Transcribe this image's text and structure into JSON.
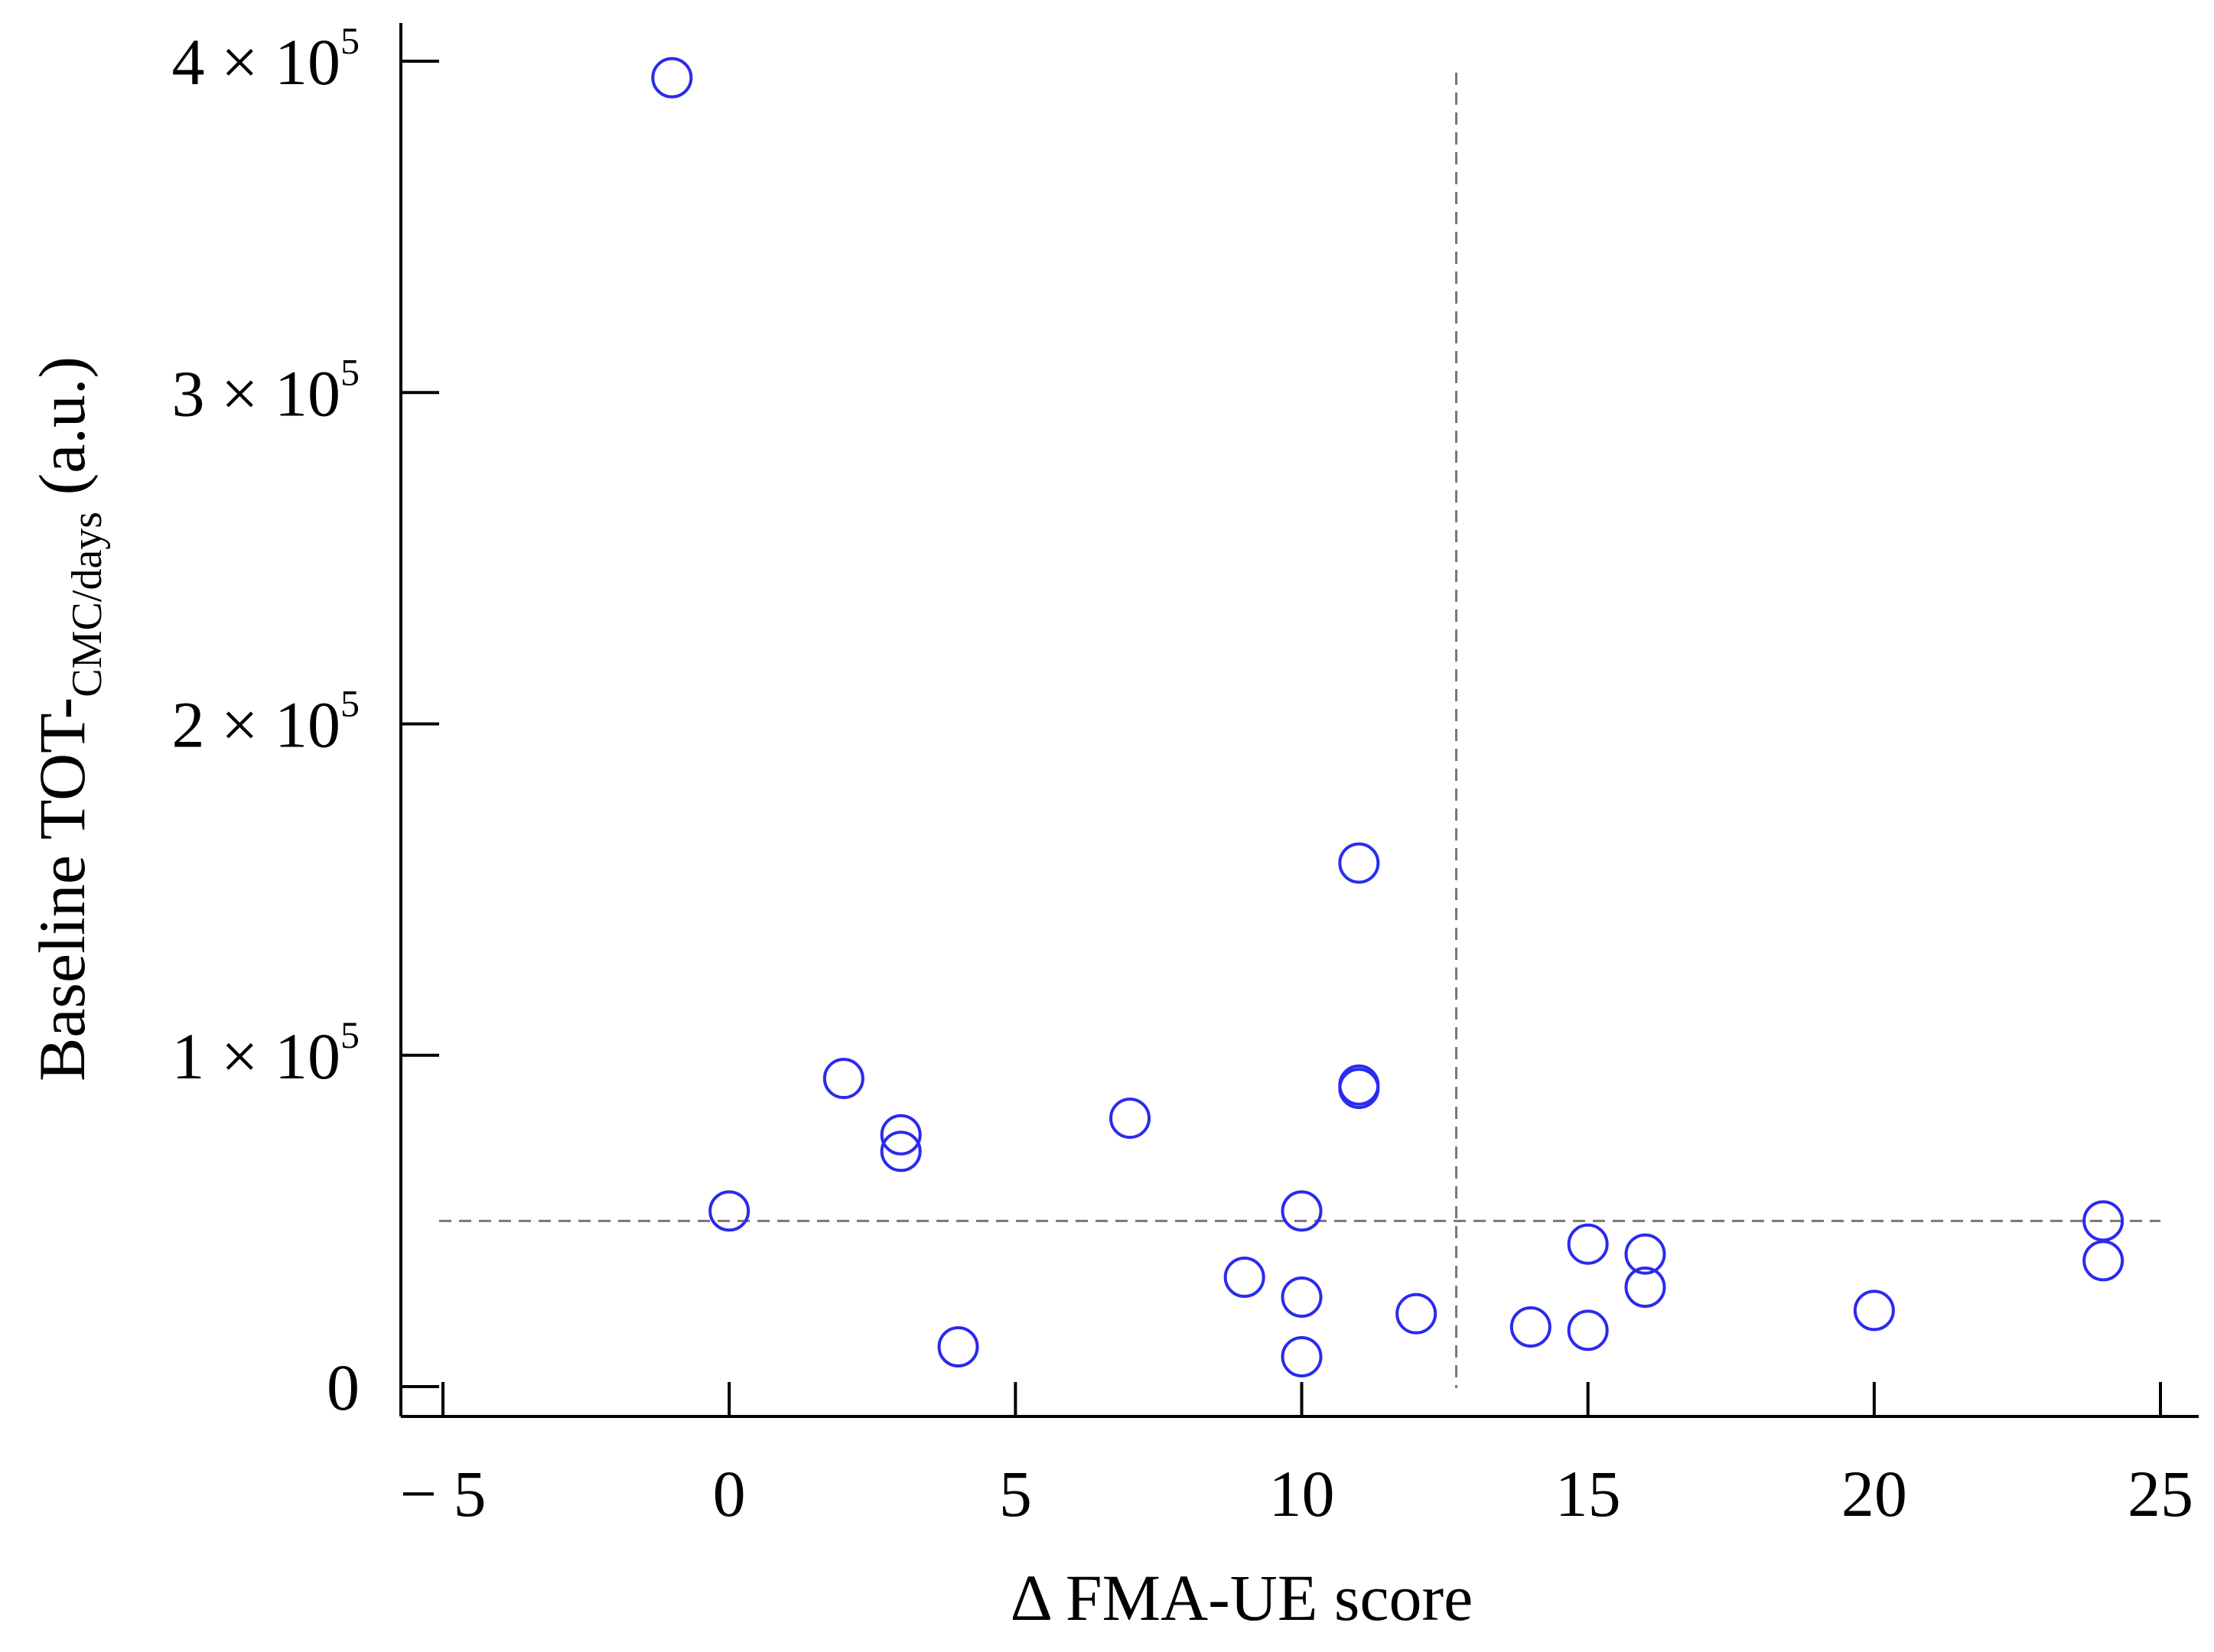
{
  "chart_data": {
    "type": "scatter",
    "xlabel": "Δ FMA-UE score",
    "ylabel": {
      "main": "Baseline TOT-",
      "subscript": "CMC/days",
      "suffix": " (a.u.)"
    },
    "xlim": [
      -5,
      25
    ],
    "ylim": [
      0,
      400000
    ],
    "x_ticks": [
      -5,
      0,
      5,
      10,
      15,
      20,
      25
    ],
    "x_tick_labels": [
      "− 5",
      "0",
      "5",
      "10",
      "15",
      "20",
      "25"
    ],
    "y_ticks": [
      0,
      100000,
      200000,
      300000,
      400000
    ],
    "y_tick_labels": [
      {
        "mantissa": "0",
        "exponent": ""
      },
      {
        "mantissa": "1 × 10",
        "exponent": "5"
      },
      {
        "mantissa": "2 × 10",
        "exponent": "5"
      },
      {
        "mantissa": "3 × 10",
        "exponent": "5"
      },
      {
        "mantissa": "4 × 10",
        "exponent": "5"
      }
    ],
    "grid": false,
    "marker": "open-circle",
    "marker_color": "#2a2af0",
    "reference_lines": {
      "vertical_x": 12.7,
      "horizontal_y": 50000,
      "color": "#777777",
      "style": "dashed"
    },
    "points": [
      {
        "x": -1,
        "y": 395000
      },
      {
        "x": 0,
        "y": 53000
      },
      {
        "x": 2,
        "y": 93000
      },
      {
        "x": 3,
        "y": 76000
      },
      {
        "x": 3,
        "y": 71000
      },
      {
        "x": 4,
        "y": 12000
      },
      {
        "x": 7,
        "y": 81000
      },
      {
        "x": 9,
        "y": 33000
      },
      {
        "x": 10,
        "y": 53000
      },
      {
        "x": 10,
        "y": 27000
      },
      {
        "x": 10,
        "y": 9000
      },
      {
        "x": 11,
        "y": 158000
      },
      {
        "x": 11,
        "y": 91000
      },
      {
        "x": 11,
        "y": 90000
      },
      {
        "x": 12,
        "y": 22000
      },
      {
        "x": 14,
        "y": 18000
      },
      {
        "x": 15,
        "y": 43000
      },
      {
        "x": 15,
        "y": 17000
      },
      {
        "x": 16,
        "y": 40000
      },
      {
        "x": 16,
        "y": 30000
      },
      {
        "x": 20,
        "y": 23000
      },
      {
        "x": 24,
        "y": 50000
      },
      {
        "x": 24,
        "y": 38000
      }
    ]
  }
}
